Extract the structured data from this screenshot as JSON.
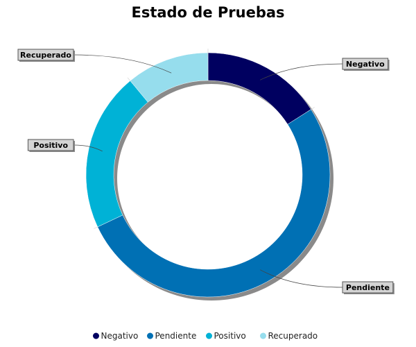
{
  "chart_data": {
    "type": "pie",
    "variant": "donut",
    "title": "Estado de Pruebas",
    "categories": [
      "Negativo",
      "Pendiente",
      "Positivo",
      "Recuperado"
    ],
    "values": [
      16,
      52,
      21,
      11
    ],
    "colors": [
      "#000060",
      "#0070b4",
      "#00b2d6",
      "#96dded"
    ],
    "legend_position": "bottom"
  }
}
